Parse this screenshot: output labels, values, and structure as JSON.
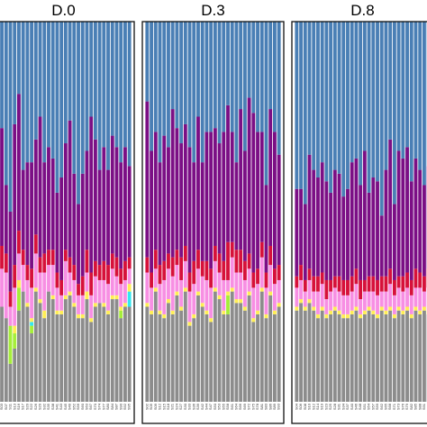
{
  "chart_data": {
    "type": "bar",
    "stacked": true,
    "normalized": true,
    "ylim": [
      0,
      1
    ],
    "legend": "none",
    "grid": false,
    "series_colors": [
      "#8c8c8c",
      "#a6ee3a",
      "#33e6f0",
      "#ffee55",
      "#f78fe3",
      "#d6113a",
      "#7b0f85",
      "#4a7fb5"
    ],
    "panels": [
      {
        "title": "D.0",
        "samples": [
          "S01",
          "S03",
          "S07",
          "S11",
          "S13",
          "S16",
          "S17",
          "S20",
          "S22",
          "S26",
          "S29",
          "S32",
          "S35",
          "S38",
          "S41",
          "S43",
          "S45",
          "S49",
          "S52",
          "S56",
          "S60",
          "S63",
          "S67",
          "S70",
          "S74",
          "S77",
          "S80",
          "S84",
          "S87",
          "S90",
          "S92",
          "S95"
        ],
        "values": [
          [
            0.3,
            0.0,
            0.0,
            0.01,
            0.05,
            0.08,
            0.2,
            0.36
          ],
          [
            0.25,
            0.0,
            0.0,
            0.0,
            0.1,
            0.06,
            0.31,
            0.28
          ],
          [
            0.22,
            0.0,
            0.0,
            0.0,
            0.12,
            0.05,
            0.18,
            0.43
          ],
          [
            0.1,
            0.1,
            0.0,
            0.0,
            0.05,
            0.04,
            0.21,
            0.5
          ],
          [
            0.14,
            0.04,
            0.0,
            0.02,
            0.1,
            0.06,
            0.37,
            0.27
          ],
          [
            0.24,
            0.06,
            0.0,
            0.02,
            0.07,
            0.06,
            0.36,
            0.19
          ],
          [
            0.29,
            0.0,
            0.0,
            0.0,
            0.07,
            0.04,
            0.21,
            0.39
          ],
          [
            0.25,
            0.0,
            0.0,
            0.01,
            0.06,
            0.04,
            0.27,
            0.37
          ],
          [
            0.18,
            0.02,
            0.01,
            0.01,
            0.08,
            0.05,
            0.28,
            0.37
          ],
          [
            0.29,
            0.0,
            0.0,
            0.01,
            0.09,
            0.05,
            0.25,
            0.31
          ],
          [
            0.26,
            0.0,
            0.0,
            0.01,
            0.07,
            0.04,
            0.37,
            0.25
          ],
          [
            0.22,
            0.0,
            0.0,
            0.02,
            0.1,
            0.05,
            0.24,
            0.37
          ],
          [
            0.29,
            0.0,
            0.0,
            0.0,
            0.07,
            0.04,
            0.27,
            0.33
          ],
          [
            0.27,
            0.0,
            0.0,
            0.01,
            0.08,
            0.04,
            0.24,
            0.36
          ],
          [
            0.23,
            0.0,
            0.0,
            0.01,
            0.06,
            0.04,
            0.21,
            0.45
          ],
          [
            0.23,
            0.0,
            0.0,
            0.01,
            0.04,
            0.04,
            0.27,
            0.41
          ],
          [
            0.27,
            0.0,
            0.0,
            0.01,
            0.09,
            0.03,
            0.28,
            0.32
          ],
          [
            0.28,
            0.0,
            0.0,
            0.01,
            0.05,
            0.04,
            0.36,
            0.26
          ],
          [
            0.25,
            0.0,
            0.0,
            0.01,
            0.06,
            0.04,
            0.24,
            0.4
          ],
          [
            0.22,
            0.0,
            0.0,
            0.01,
            0.05,
            0.03,
            0.21,
            0.48
          ],
          [
            0.22,
            0.0,
            0.0,
            0.01,
            0.05,
            0.05,
            0.27,
            0.4
          ],
          [
            0.27,
            0.0,
            0.0,
            0.02,
            0.05,
            0.06,
            0.26,
            0.34
          ],
          [
            0.21,
            0.0,
            0.0,
            0.01,
            0.06,
            0.06,
            0.41,
            0.25
          ],
          [
            0.25,
            0.0,
            0.0,
            0.01,
            0.07,
            0.04,
            0.32,
            0.31
          ],
          [
            0.26,
            0.0,
            0.0,
            0.0,
            0.06,
            0.04,
            0.25,
            0.39
          ],
          [
            0.25,
            0.0,
            0.0,
            0.01,
            0.06,
            0.05,
            0.3,
            0.33
          ],
          [
            0.23,
            0.0,
            0.0,
            0.01,
            0.07,
            0.05,
            0.25,
            0.39
          ],
          [
            0.27,
            0.0,
            0.0,
            0.01,
            0.07,
            0.04,
            0.31,
            0.3
          ],
          [
            0.27,
            0.0,
            0.0,
            0.01,
            0.05,
            0.05,
            0.29,
            0.33
          ],
          [
            0.22,
            0.02,
            0.0,
            0.01,
            0.06,
            0.04,
            0.28,
            0.37
          ],
          [
            0.25,
            0.0,
            0.0,
            0.01,
            0.06,
            0.05,
            0.3,
            0.33
          ],
          [
            0.25,
            0.0,
            0.04,
            0.02,
            0.04,
            0.03,
            0.24,
            0.38
          ]
        ]
      },
      {
        "title": "D.3",
        "samples": [
          "S02",
          "S05",
          "S09",
          "S12",
          "S15",
          "S18",
          "S21",
          "S24",
          "S27",
          "S30",
          "S33",
          "S36",
          "S39",
          "S42",
          "S44",
          "S47",
          "S50",
          "S53",
          "S55",
          "S58",
          "S61",
          "S64",
          "S66",
          "S69",
          "S72",
          "S75",
          "S78",
          "S81",
          "S83",
          "S86",
          "S89",
          "S93"
        ],
        "values": [
          [
            0.25,
            0.0,
            0.0,
            0.01,
            0.08,
            0.04,
            0.41,
            0.21
          ],
          [
            0.23,
            0.0,
            0.0,
            0.01,
            0.06,
            0.04,
            0.32,
            0.34
          ],
          [
            0.29,
            0.0,
            0.0,
            0.01,
            0.05,
            0.05,
            0.31,
            0.29
          ],
          [
            0.23,
            0.0,
            0.0,
            0.01,
            0.07,
            0.05,
            0.27,
            0.37
          ],
          [
            0.22,
            0.0,
            0.0,
            0.01,
            0.09,
            0.05,
            0.33,
            0.3
          ],
          [
            0.26,
            0.0,
            0.0,
            0.01,
            0.08,
            0.04,
            0.28,
            0.33
          ],
          [
            0.23,
            0.0,
            0.0,
            0.01,
            0.09,
            0.05,
            0.39,
            0.23
          ],
          [
            0.28,
            0.0,
            0.0,
            0.01,
            0.07,
            0.04,
            0.32,
            0.28
          ],
          [
            0.24,
            0.0,
            0.0,
            0.01,
            0.07,
            0.06,
            0.3,
            0.32
          ],
          [
            0.29,
            0.0,
            0.0,
            0.01,
            0.07,
            0.04,
            0.32,
            0.27
          ],
          [
            0.2,
            0.0,
            0.0,
            0.01,
            0.08,
            0.05,
            0.33,
            0.33
          ],
          [
            0.22,
            0.0,
            0.0,
            0.01,
            0.08,
            0.06,
            0.26,
            0.37
          ],
          [
            0.28,
            0.0,
            0.0,
            0.01,
            0.06,
            0.05,
            0.35,
            0.25
          ],
          [
            0.25,
            0.0,
            0.0,
            0.01,
            0.07,
            0.04,
            0.26,
            0.37
          ],
          [
            0.23,
            0.0,
            0.0,
            0.01,
            0.08,
            0.05,
            0.34,
            0.29
          ],
          [
            0.21,
            0.0,
            0.0,
            0.01,
            0.08,
            0.05,
            0.36,
            0.29
          ],
          [
            0.29,
            0.0,
            0.0,
            0.01,
            0.07,
            0.04,
            0.31,
            0.28
          ],
          [
            0.27,
            0.0,
            0.0,
            0.01,
            0.06,
            0.05,
            0.29,
            0.32
          ],
          [
            0.23,
            0.0,
            0.0,
            0.01,
            0.08,
            0.05,
            0.34,
            0.29
          ],
          [
            0.23,
            0.05,
            0.0,
            0.01,
            0.03,
            0.1,
            0.36,
            0.22
          ],
          [
            0.29,
            0.0,
            0.0,
            0.01,
            0.08,
            0.04,
            0.29,
            0.29
          ],
          [
            0.26,
            0.0,
            0.0,
            0.01,
            0.07,
            0.06,
            0.23,
            0.37
          ],
          [
            0.26,
            0.0,
            0.0,
            0.01,
            0.07,
            0.06,
            0.37,
            0.23
          ],
          [
            0.24,
            0.0,
            0.0,
            0.01,
            0.07,
            0.05,
            0.29,
            0.34
          ],
          [
            0.28,
            0.0,
            0.0,
            0.01,
            0.06,
            0.04,
            0.41,
            0.2
          ],
          [
            0.21,
            0.0,
            0.0,
            0.01,
            0.08,
            0.04,
            0.42,
            0.24
          ],
          [
            0.23,
            0.0,
            0.0,
            0.01,
            0.07,
            0.04,
            0.36,
            0.29
          ],
          [
            0.29,
            0.0,
            0.0,
            0.01,
            0.08,
            0.04,
            0.29,
            0.29
          ],
          [
            0.22,
            0.0,
            0.0,
            0.01,
            0.07,
            0.04,
            0.23,
            0.43
          ],
          [
            0.28,
            0.0,
            0.0,
            0.01,
            0.07,
            0.05,
            0.36,
            0.23
          ],
          [
            0.23,
            0.0,
            0.0,
            0.01,
            0.07,
            0.04,
            0.36,
            0.29
          ],
          [
            0.25,
            0.0,
            0.0,
            0.01,
            0.06,
            0.04,
            0.29,
            0.35
          ]
        ]
      },
      {
        "title": "D.8",
        "samples": [
          "S04",
          "S06",
          "S08",
          "S10",
          "S12",
          "S14",
          "S19",
          "S23",
          "S25",
          "S28",
          "S31",
          "S34",
          "S37",
          "S40",
          "S46",
          "S48",
          "S51",
          "S54",
          "S57",
          "S59",
          "S62",
          "S65",
          "S68",
          "S71",
          "S73",
          "S76",
          "S79",
          "S82",
          "S85",
          "S88",
          "S91",
          "S94"
        ],
        "values": [
          [
            0.24,
            0.0,
            0.0,
            0.01,
            0.05,
            0.03,
            0.23,
            0.44
          ],
          [
            0.26,
            0.0,
            0.0,
            0.01,
            0.05,
            0.04,
            0.2,
            0.44
          ],
          [
            0.24,
            0.0,
            0.0,
            0.01,
            0.04,
            0.03,
            0.2,
            0.48
          ],
          [
            0.26,
            0.0,
            0.0,
            0.01,
            0.05,
            0.03,
            0.3,
            0.35
          ],
          [
            0.24,
            0.0,
            0.0,
            0.01,
            0.04,
            0.04,
            0.28,
            0.39
          ],
          [
            0.22,
            0.0,
            0.0,
            0.01,
            0.06,
            0.04,
            0.26,
            0.41
          ],
          [
            0.24,
            0.0,
            0.0,
            0.01,
            0.06,
            0.03,
            0.29,
            0.37
          ],
          [
            0.22,
            0.0,
            0.0,
            0.01,
            0.04,
            0.05,
            0.26,
            0.42
          ],
          [
            0.23,
            0.0,
            0.0,
            0.01,
            0.05,
            0.03,
            0.23,
            0.45
          ],
          [
            0.24,
            0.0,
            0.0,
            0.01,
            0.05,
            0.03,
            0.28,
            0.39
          ],
          [
            0.23,
            0.0,
            0.0,
            0.01,
            0.05,
            0.04,
            0.27,
            0.4
          ],
          [
            0.22,
            0.0,
            0.0,
            0.01,
            0.05,
            0.04,
            0.22,
            0.46
          ],
          [
            0.22,
            0.0,
            0.0,
            0.01,
            0.05,
            0.04,
            0.24,
            0.44
          ],
          [
            0.23,
            0.0,
            0.0,
            0.01,
            0.05,
            0.04,
            0.3,
            0.37
          ],
          [
            0.24,
            0.0,
            0.0,
            0.01,
            0.06,
            0.04,
            0.29,
            0.36
          ],
          [
            0.22,
            0.0,
            0.0,
            0.01,
            0.04,
            0.05,
            0.25,
            0.43
          ],
          [
            0.23,
            0.0,
            0.0,
            0.01,
            0.05,
            0.03,
            0.34,
            0.34
          ],
          [
            0.24,
            0.0,
            0.0,
            0.01,
            0.04,
            0.04,
            0.22,
            0.45
          ],
          [
            0.23,
            0.0,
            0.0,
            0.01,
            0.05,
            0.04,
            0.26,
            0.41
          ],
          [
            0.22,
            0.0,
            0.0,
            0.01,
            0.05,
            0.04,
            0.26,
            0.42
          ],
          [
            0.24,
            0.0,
            0.0,
            0.01,
            0.04,
            0.04,
            0.16,
            0.51
          ],
          [
            0.23,
            0.0,
            0.0,
            0.01,
            0.05,
            0.04,
            0.28,
            0.39
          ],
          [
            0.24,
            0.0,
            0.0,
            0.01,
            0.06,
            0.04,
            0.34,
            0.31
          ],
          [
            0.22,
            0.0,
            0.0,
            0.01,
            0.05,
            0.04,
            0.2,
            0.48
          ],
          [
            0.24,
            0.0,
            0.0,
            0.01,
            0.05,
            0.03,
            0.33,
            0.34
          ],
          [
            0.23,
            0.0,
            0.0,
            0.01,
            0.05,
            0.04,
            0.31,
            0.36
          ],
          [
            0.24,
            0.0,
            0.0,
            0.01,
            0.05,
            0.04,
            0.33,
            0.33
          ],
          [
            0.22,
            0.0,
            0.0,
            0.01,
            0.05,
            0.04,
            0.26,
            0.42
          ],
          [
            0.24,
            0.0,
            0.0,
            0.01,
            0.05,
            0.05,
            0.29,
            0.36
          ],
          [
            0.23,
            0.0,
            0.0,
            0.01,
            0.06,
            0.04,
            0.27,
            0.39
          ],
          [
            0.24,
            0.0,
            0.0,
            0.01,
            0.04,
            0.04,
            0.24,
            0.43
          ],
          [
            0.23,
            0.0,
            0.0,
            0.01,
            0.06,
            0.05,
            0.27,
            0.38
          ]
        ]
      }
    ]
  }
}
